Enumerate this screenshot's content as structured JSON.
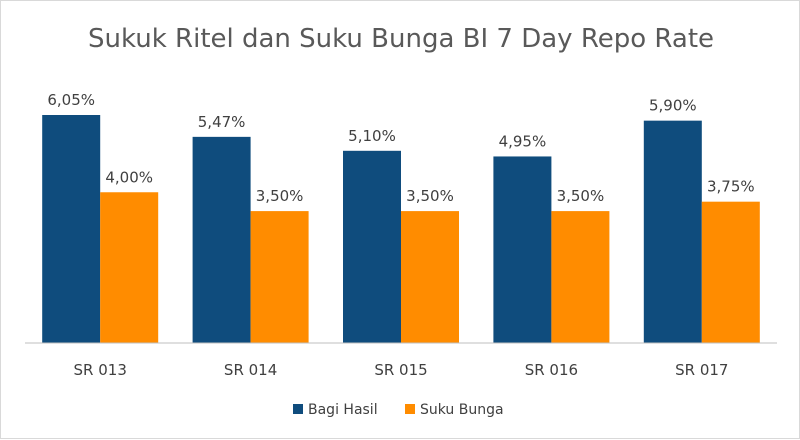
{
  "chart_data": {
    "type": "bar",
    "title": "Sukuk Ritel dan Suku Bunga BI 7 Day Repo Rate",
    "categories": [
      "SR 013",
      "SR 014",
      "SR 015",
      "SR 016",
      "SR 017"
    ],
    "series": [
      {
        "name": "Bagi Hasil",
        "color": "#0f4c7d",
        "values": [
          6.05,
          5.47,
          5.1,
          4.95,
          5.9
        ],
        "labels": [
          "6,05%",
          "5,47%",
          "5,10%",
          "4,95%",
          "5,90%"
        ]
      },
      {
        "name": "Suku Bunga",
        "color": "#ff8c00",
        "values": [
          4.0,
          3.5,
          3.5,
          3.5,
          3.75
        ],
        "labels": [
          "4,00%",
          "3,50%",
          "3,50%",
          "3,50%",
          "3,75%"
        ]
      }
    ],
    "ylim": [
      0,
      6.05
    ],
    "grid": false,
    "legend": "bottom"
  }
}
